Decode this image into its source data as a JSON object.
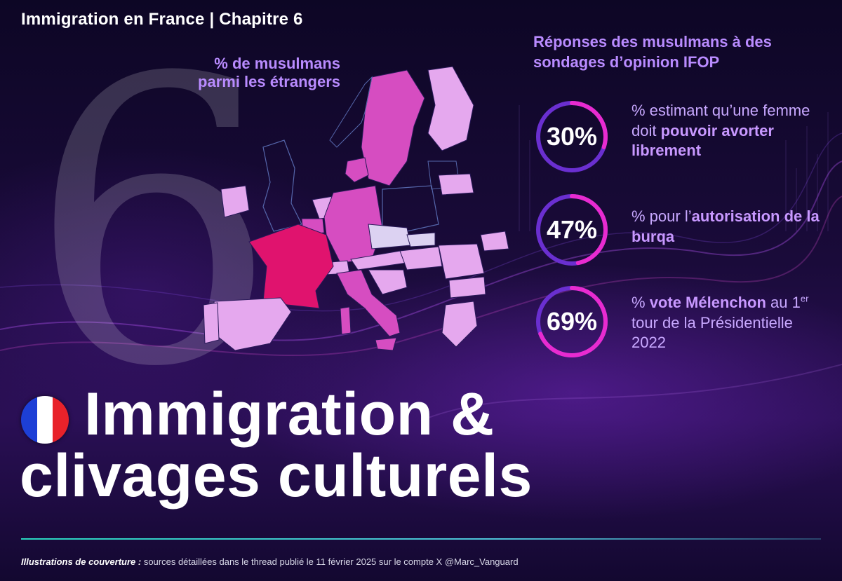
{
  "header": {
    "title": "Immigration en France  |  Chapitre 6"
  },
  "chapter_number": "6",
  "map": {
    "label": "% de musulmans parmi les étrangers",
    "colors": {
      "high": "#e0136e",
      "mid": "#d64dc1",
      "low": "#e5a8ee",
      "pale": "#dcd2f2"
    }
  },
  "survey": {
    "title": "Réponses des musulmans à des sondages d’opinion IFOP",
    "stats": [
      {
        "value": "30%",
        "pct": 0.3,
        "text_pre": "% estimant qu’une femme doit ",
        "text_bold": "pouvoir avorter librement",
        "text_post": ""
      },
      {
        "value": "47%",
        "pct": 0.47,
        "text_pre": "% pour l’",
        "text_bold": "autorisation de la burqa",
        "text_post": ""
      },
      {
        "value": "69%",
        "pct": 0.69,
        "text_pre": "% ",
        "text_bold": "vote Mélenchon",
        "text_mid": " au 1",
        "text_sup": "er",
        "text_post": " tour de la Présidentielle 2022"
      }
    ],
    "ring_color": "#e82bd0",
    "ring_track": "#6a2fd0"
  },
  "main_title": {
    "line1": "Immigration &",
    "line2": "clivages culturels"
  },
  "flag": {
    "blue": "#1d3fd6",
    "white": "#ffffff",
    "red": "#e8222a"
  },
  "footer": {
    "bold": "Illustrations de couverture :",
    "text": " sources détaillées dans le thread publié le 11 février 2025 sur le compte X @Marc_Vanguard"
  }
}
